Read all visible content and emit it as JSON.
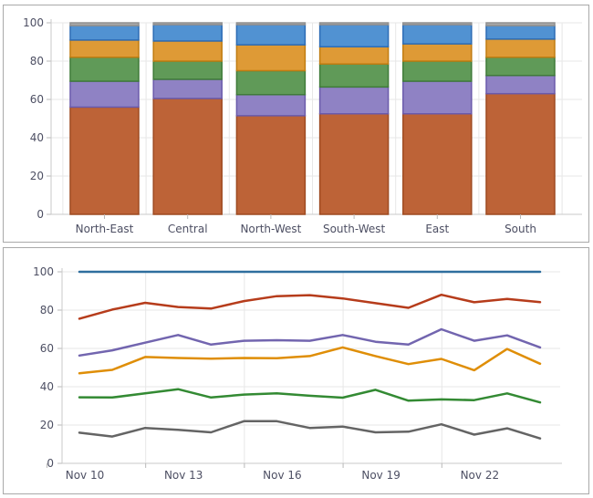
{
  "panels": {
    "top": {
      "name": "stacked-bar-chart-panel"
    },
    "bottom": {
      "name": "line-chart-panel"
    }
  },
  "colors": {
    "grid": "#e7e7e7",
    "axis": "#c9c9c9",
    "tick": "#b9b9b9",
    "label": "#4d4f63",
    "panel_border": "#a9a9a9",
    "background": "#ffffff"
  },
  "chart_data": [
    {
      "type": "bar",
      "stacked": true,
      "stacked_percent": true,
      "title": "",
      "xlabel": "",
      "ylabel": "",
      "grid": true,
      "legend": "none",
      "ylim": [
        0,
        100
      ],
      "yticks": [
        0,
        20,
        40,
        60,
        80,
        100
      ],
      "categories": [
        "North-East",
        "Central",
        "North-West",
        "South-West",
        "East",
        "South"
      ],
      "series": [
        {
          "name": "series-brown",
          "color": "#bd6337",
          "border": "#9e4a21",
          "values": [
            56.0,
            60.5,
            51.5,
            52.5,
            52.5,
            63.0
          ]
        },
        {
          "name": "series-purple",
          "color": "#8f82c4",
          "border": "#6a5aab",
          "values": [
            13.5,
            10.0,
            11.0,
            14.0,
            17.0,
            9.5
          ]
        },
        {
          "name": "series-green",
          "color": "#609a58",
          "border": "#3f7b39",
          "values": [
            12.5,
            9.5,
            12.5,
            12.0,
            10.5,
            9.5
          ]
        },
        {
          "name": "series-orange",
          "color": "#de9a36",
          "border": "#c07c11",
          "values": [
            9.0,
            10.5,
            13.5,
            9.0,
            9.0,
            9.5
          ]
        },
        {
          "name": "series-blue",
          "color": "#5192d2",
          "border": "#2d6cb5",
          "values": [
            7.5,
            8.5,
            10.5,
            11.5,
            10.0,
            7.0
          ]
        },
        {
          "name": "series-gray",
          "color": "#a8a8a8",
          "border": "#8f8f8f",
          "values": [
            1.5,
            1.0,
            1.0,
            1.0,
            1.0,
            1.5
          ]
        }
      ]
    },
    {
      "type": "line",
      "title": "",
      "xlabel": "",
      "ylabel": "",
      "grid": true,
      "legend": "none",
      "ylim": [
        0,
        100
      ],
      "yticks": [
        0,
        20,
        40,
        60,
        80,
        100
      ],
      "x_point_count": 15,
      "x_label_every": 3,
      "x_labels": [
        "Nov 10",
        "Nov 13",
        "Nov 16",
        "Nov 19",
        "Nov 22"
      ],
      "series": [
        {
          "name": "line-blue",
          "color": "#2e6e9e",
          "values": [
            100,
            100,
            100,
            100,
            100,
            100,
            100,
            100,
            100,
            100,
            100,
            100,
            100,
            100,
            100
          ]
        },
        {
          "name": "line-red",
          "color": "#b63c1b",
          "values": [
            75.5,
            80.3,
            83.8,
            81.6,
            80.8,
            84.7,
            87.3,
            87.8,
            86.1,
            83.6,
            81.2,
            88.0,
            84.1,
            85.8,
            84.2
          ]
        },
        {
          "name": "line-purple",
          "color": "#7265af",
          "values": [
            56.3,
            59.0,
            63.0,
            67.0,
            62.0,
            64.0,
            64.3,
            64.0,
            67.0,
            63.5,
            62.0,
            70.0,
            64.0,
            66.8,
            60.5
          ]
        },
        {
          "name": "line-orange",
          "color": "#df8e07",
          "values": [
            47.0,
            48.8,
            55.5,
            55.0,
            54.6,
            55.0,
            54.9,
            56.0,
            60.5,
            56.0,
            51.8,
            54.5,
            48.6,
            59.7,
            52.0
          ]
        },
        {
          "name": "line-green",
          "color": "#338a33",
          "values": [
            34.5,
            34.4,
            36.5,
            38.7,
            34.4,
            35.9,
            36.5,
            35.3,
            34.3,
            38.4,
            32.7,
            33.4,
            33.0,
            36.5,
            31.8
          ]
        },
        {
          "name": "line-gray",
          "color": "#646464",
          "values": [
            16.0,
            14.0,
            18.5,
            17.5,
            16.2,
            22.0,
            22.0,
            18.5,
            19.2,
            16.2,
            16.5,
            20.4,
            15.0,
            18.3,
            13.0
          ]
        }
      ]
    }
  ]
}
